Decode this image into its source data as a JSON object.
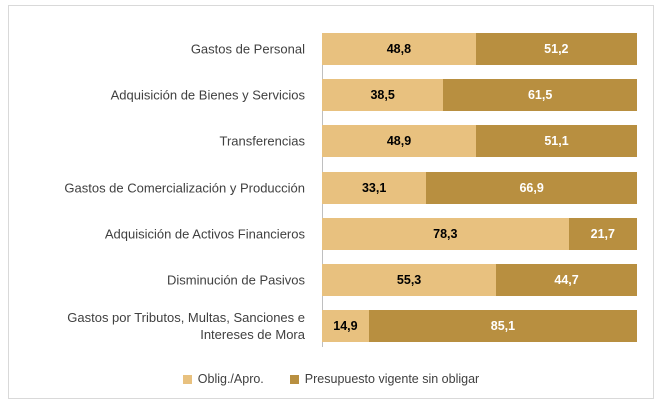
{
  "chart_data": {
    "type": "stacked_bar_horizontal",
    "categories": [
      "Gastos de Personal",
      "Adquisición de Bienes y Servicios",
      "Transferencias",
      "Gastos de Comercialización y Producción",
      "Adquisición de Activos Financieros",
      "Disminución de Pasivos",
      "Gastos por Tributos, Multas, Sanciones e Intereses de Mora"
    ],
    "xlim": [
      0,
      100
    ],
    "series": [
      {
        "name": "Oblig./Apro.",
        "color": "#e8c17f",
        "label_color": "#000000",
        "values": [
          48.8,
          38.5,
          48.9,
          33.1,
          78.3,
          55.3,
          14.9
        ],
        "value_labels": [
          "48,8",
          "38,5",
          "48,9",
          "33,1",
          "78,3",
          "55,3",
          "14,9"
        ]
      },
      {
        "name": "Presupuesto vigente sin obligar",
        "color": "#b88f40",
        "label_color": "#ffffff",
        "values": [
          51.2,
          61.5,
          51.1,
          66.9,
          21.7,
          44.7,
          85.1
        ],
        "value_labels": [
          "51,2",
          "61,5",
          "51,1",
          "66,9",
          "21,7",
          "44,7",
          "85,1"
        ]
      }
    ],
    "legend": "bottom"
  }
}
